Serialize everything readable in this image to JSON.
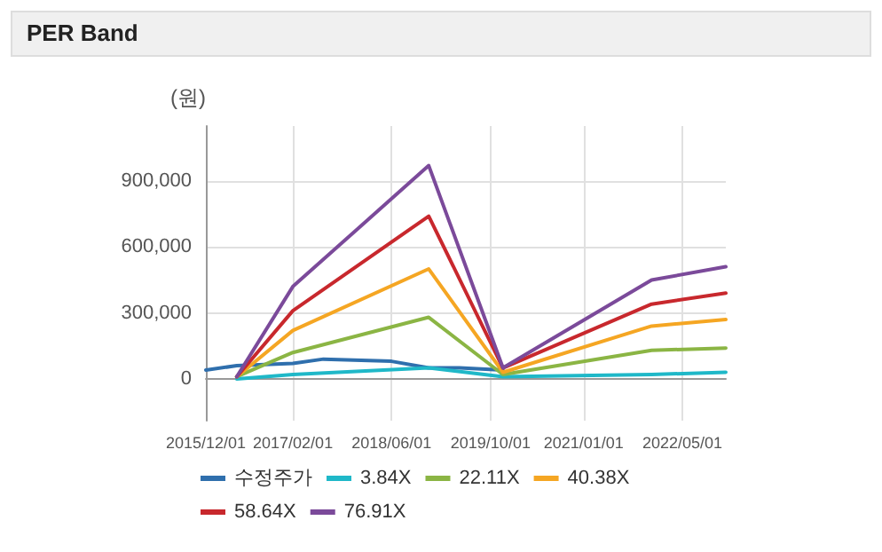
{
  "chart_data": {
    "type": "line",
    "title": "PER Band",
    "ylabel": "(원)",
    "xlim": [
      "2015-12-01",
      "2022-12-01"
    ],
    "xticks": [
      {
        "value": "2015-12-01",
        "label": "2015/12/01"
      },
      {
        "value": "2017-02-01",
        "label": "2017/02/01"
      },
      {
        "value": "2018-06-01",
        "label": "2018/06/01"
      },
      {
        "value": "2019-10-01",
        "label": "2019/10/01"
      },
      {
        "value": "2021-01-01",
        "label": "2021/01/01"
      },
      {
        "value": "2022-05-01",
        "label": "2022/05/01"
      }
    ],
    "ylim": [
      -190000,
      1150000
    ],
    "yticks": [
      {
        "value": 0,
        "label": "0"
      },
      {
        "value": 300000,
        "label": "300,000"
      },
      {
        "value": 600000,
        "label": "600,000"
      },
      {
        "value": 900000,
        "label": "900,000"
      }
    ],
    "grid": true,
    "legend": "bottom",
    "marker": "none",
    "line_style": "solid",
    "series": [
      {
        "name": "수정주가",
        "color": "#2f6fad",
        "x": [
          "2015-12-01",
          "2016-05-01",
          "2017-02-01",
          "2017-07-01",
          "2018-06-01",
          "2018-12-01",
          "2019-05-01",
          "2019-12-01"
        ],
        "values": [
          40000,
          60000,
          70000,
          90000,
          80000,
          50000,
          50000,
          40000
        ]
      },
      {
        "name": "3.84X",
        "color": "#1fb8c8",
        "x": [
          "2016-05-01",
          "2017-02-01",
          "2018-12-01",
          "2019-12-01",
          "2021-12-01",
          "2022-12-01"
        ],
        "values": [
          0,
          20000,
          50000,
          10000,
          20000,
          30000
        ]
      },
      {
        "name": "22.11X",
        "color": "#8bb544",
        "x": [
          "2016-05-01",
          "2017-02-01",
          "2018-12-01",
          "2019-12-01",
          "2021-12-01",
          "2022-12-01"
        ],
        "values": [
          10000,
          120000,
          280000,
          20000,
          130000,
          140000
        ]
      },
      {
        "name": "40.38X",
        "color": "#f5a623",
        "x": [
          "2016-05-01",
          "2017-02-01",
          "2018-12-01",
          "2019-12-01",
          "2021-12-01",
          "2022-12-01"
        ],
        "values": [
          10000,
          220000,
          500000,
          30000,
          240000,
          270000
        ]
      },
      {
        "name": "58.64X",
        "color": "#c8282d",
        "x": [
          "2016-05-01",
          "2017-02-01",
          "2018-12-01",
          "2019-12-01",
          "2021-12-01",
          "2022-12-01"
        ],
        "values": [
          10000,
          310000,
          740000,
          50000,
          340000,
          390000
        ]
      },
      {
        "name": "76.91X",
        "color": "#7b4a9a",
        "x": [
          "2016-05-01",
          "2017-02-01",
          "2018-12-01",
          "2019-12-01",
          "2021-12-01",
          "2022-12-01"
        ],
        "values": [
          10000,
          420000,
          970000,
          50000,
          450000,
          510000
        ]
      }
    ]
  }
}
